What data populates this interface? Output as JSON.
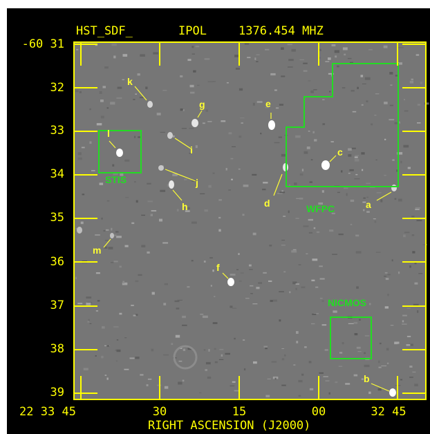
{
  "header": {
    "name": "HST_SDF_",
    "polarization": "IPOL",
    "frequency": "1376.454 MHZ"
  },
  "dec_labels": [
    "-60 31",
    "32",
    "33",
    "34",
    "35",
    "36",
    "37",
    "38",
    "39"
  ],
  "ra_labels": [
    "22 33 45",
    "30",
    "15",
    "00",
    "32 45"
  ],
  "x_axis_title": "RIGHT ASCENSION (J2000)",
  "sources": [
    "a",
    "b",
    "c",
    "d",
    "e",
    "f",
    "g",
    "h",
    "i",
    "j",
    "k",
    "l",
    "m"
  ],
  "instrument_fields": [
    "STIS",
    "WFPC",
    "NICMOS"
  ],
  "colors": {
    "axis": "#ffff00",
    "field_outline": "#22dd22",
    "background": "#000000",
    "image": "#767676"
  }
}
